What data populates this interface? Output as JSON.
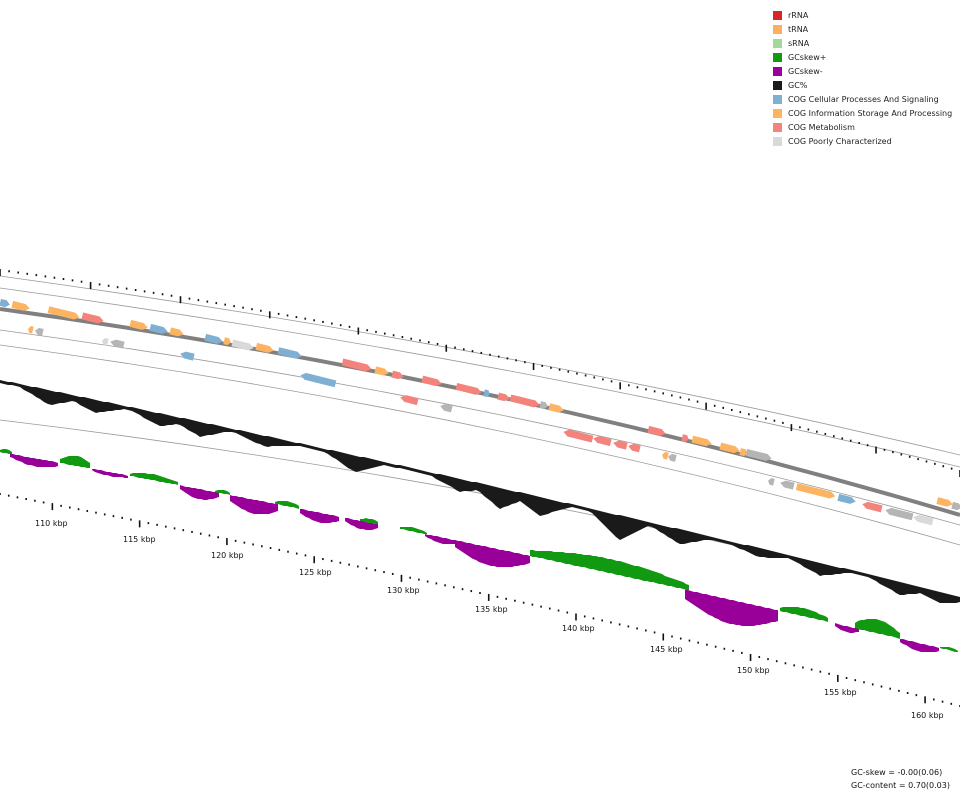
{
  "legend": [
    {
      "label": "rRNA",
      "color": "#d62728",
      "icon": "rrna-swatch"
    },
    {
      "label": "tRNA",
      "color": "#fdae61",
      "icon": "trna-swatch"
    },
    {
      "label": "sRNA",
      "color": "#a1d99b",
      "icon": "srna-swatch"
    },
    {
      "label": "GCskew+",
      "color": "#119911",
      "icon": "gcskew-plus-swatch"
    },
    {
      "label": "GCskew-",
      "color": "#990099",
      "icon": "gcskew-minus-swatch"
    },
    {
      "label": "GC%",
      "color": "#1a1a1a",
      "icon": "gc-percent-swatch"
    },
    {
      "label": "COG Cellular Processes And Signaling",
      "color": "#7fafd3",
      "icon": "cog-cellular-swatch"
    },
    {
      "label": "COG Information Storage And Processing",
      "color": "#fdb462",
      "icon": "cog-information-swatch"
    },
    {
      "label": "COG Metabolism",
      "color": "#f4837b",
      "icon": "cog-metabolism-swatch"
    },
    {
      "label": "COG Poorly Characterized",
      "color": "#d9d9d9",
      "icon": "cog-poorly-swatch"
    }
  ],
  "tick_labels": [
    "110 kbp",
    "115 kbp",
    "120 kbp",
    "125 kbp",
    "130 kbp",
    "135 kbp",
    "140 kbp",
    "145 kbp",
    "150 kbp",
    "155 kbp",
    "160 kbp"
  ],
  "stats": {
    "gc_skew": "GC-skew = -0.00(0.06)",
    "gc_content": "GC-content = 0.70(0.03)"
  }
}
